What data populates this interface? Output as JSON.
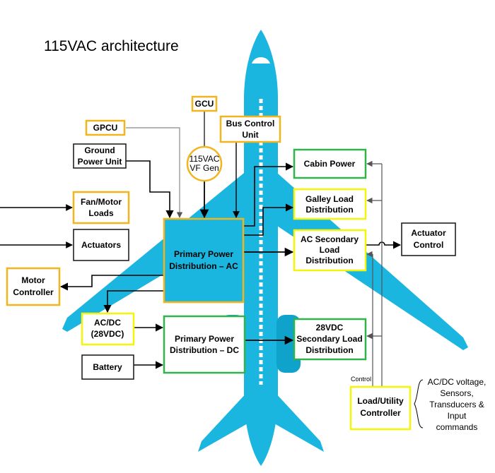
{
  "title": "115VAC architecture",
  "colors": {
    "aircraft": "#1ab6e0",
    "aircraft_dark": "#0fa3cc",
    "orange": "#f3b51e",
    "yellow": "#f5f50a",
    "green": "#2fb34a",
    "black": "#000000",
    "gray": "#888888"
  },
  "boxes": {
    "gcu": [
      "GCU"
    ],
    "gpcu": [
      "GPCU"
    ],
    "bus_control": [
      "Bus Control",
      "Unit"
    ],
    "ground_power": [
      "Ground",
      "Power Unit"
    ],
    "vf_gen": [
      "115VAC",
      "VF Gen"
    ],
    "cabin_power": [
      "Cabin Power"
    ],
    "galley": [
      "Galley Load",
      "Distribution"
    ],
    "ac_secondary": [
      "AC Secondary",
      "Load",
      "Distribution"
    ],
    "fan_motor": [
      "Fan/Motor",
      "Loads"
    ],
    "actuators": [
      "Actuators"
    ],
    "ppd_ac": [
      "Primary Power",
      "Distribution – AC"
    ],
    "motor_controller": [
      "Motor",
      "Controller"
    ],
    "actuator_control": [
      "Actuator",
      "Control"
    ],
    "acdc": [
      "AC/DC",
      "(28VDC)"
    ],
    "ppd_dc": [
      "Primary Power",
      "Distribution – DC"
    ],
    "dc_secondary": [
      "28VDC",
      "Secondary Load",
      "Distribution"
    ],
    "battery": [
      "Battery"
    ],
    "load_utility": [
      "Load/Utility",
      "Controller"
    ]
  },
  "labels": {
    "control": "Control",
    "inputs": [
      "AC/DC voltage,",
      "Sensors,",
      "Transducers &",
      "Input",
      "commands"
    ]
  }
}
